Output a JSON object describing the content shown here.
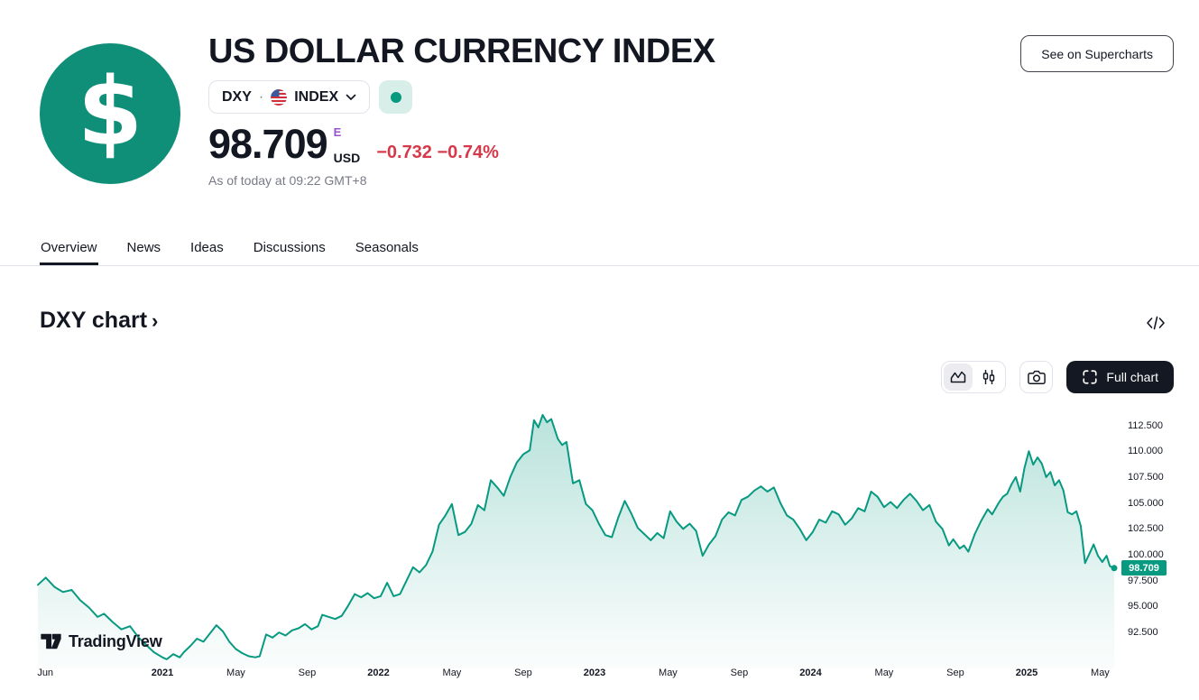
{
  "header": {
    "title": "US DOLLAR CURRENCY INDEX",
    "logo_symbol": "$",
    "symbol": "DXY",
    "separator": "·",
    "exchange": "INDEX",
    "market_status": "open",
    "price": "98.709",
    "price_flag": "E",
    "currency": "USD",
    "change_abs": "−0.732",
    "change_pct": "−0.74%",
    "as_of": "As of today at 09:22 GMT+8",
    "supercharts_button": "See on Supercharts"
  },
  "tabs": [
    {
      "label": "Overview",
      "active": true
    },
    {
      "label": "News",
      "active": false
    },
    {
      "label": "Ideas",
      "active": false
    },
    {
      "label": "Discussions",
      "active": false
    },
    {
      "label": "Seasonals",
      "active": false
    }
  ],
  "section": {
    "heading": "DXY chart",
    "chevron": "›"
  },
  "toolbar": {
    "full_chart_label": "Full chart",
    "icons": [
      "area-chart-icon",
      "candlestick-icon",
      "camera-icon",
      "fullscreen-icon"
    ]
  },
  "colors": {
    "accent": "#089981",
    "logo": "#0f8e78",
    "red": "#d6394a",
    "purple": "#9b52cc",
    "text": "#131722",
    "text_secondary": "#787b86",
    "border_light": "#e0e3eb"
  },
  "chart_data": {
    "type": "area",
    "title": "DXY chart",
    "series_name": "DXY",
    "watermark": "TradingView",
    "grid": false,
    "legend": false,
    "x_range": [
      2020.42,
      2025.41
    ],
    "ylim": [
      89.0,
      115.2
    ],
    "y_axis": {
      "ticks": [
        112.5,
        110.0,
        107.5,
        105.0,
        102.5,
        100.0,
        97.5,
        95.0,
        92.5
      ],
      "labels": [
        "112.500",
        "110.000",
        "107.500",
        "105.000",
        "102.500",
        "100.000",
        "97.500",
        "95.000",
        "92.500"
      ],
      "price_value": 98.709,
      "price_label": "98.709"
    },
    "x_ticks": [
      {
        "label": "Jun",
        "t": 2020.458,
        "bold": false
      },
      {
        "label": "2021",
        "t": 2021.0,
        "bold": true
      },
      {
        "label": "May",
        "t": 2021.34,
        "bold": false
      },
      {
        "label": "Sep",
        "t": 2021.67,
        "bold": false
      },
      {
        "label": "2022",
        "t": 2022.0,
        "bold": true
      },
      {
        "label": "May",
        "t": 2022.34,
        "bold": false
      },
      {
        "label": "Sep",
        "t": 2022.67,
        "bold": false
      },
      {
        "label": "2023",
        "t": 2023.0,
        "bold": true
      },
      {
        "label": "May",
        "t": 2023.34,
        "bold": false
      },
      {
        "label": "Sep",
        "t": 2023.67,
        "bold": false
      },
      {
        "label": "2024",
        "t": 2024.0,
        "bold": true
      },
      {
        "label": "May",
        "t": 2024.34,
        "bold": false
      },
      {
        "label": "Sep",
        "t": 2024.67,
        "bold": false
      },
      {
        "label": "2025",
        "t": 2025.0,
        "bold": true
      },
      {
        "label": "May",
        "t": 2025.34,
        "bold": false
      }
    ],
    "series": [
      {
        "name": "DXY",
        "points": [
          [
            2020.424,
            97.1
          ],
          [
            2020.46,
            97.8
          ],
          [
            2020.5,
            96.9
          ],
          [
            2020.54,
            96.4
          ],
          [
            2020.58,
            96.6
          ],
          [
            2020.62,
            95.6
          ],
          [
            2020.66,
            94.9
          ],
          [
            2020.7,
            94.0
          ],
          [
            2020.73,
            94.3
          ],
          [
            2020.77,
            93.5
          ],
          [
            2020.81,
            92.8
          ],
          [
            2020.85,
            93.1
          ],
          [
            2020.89,
            92.0
          ],
          [
            2020.93,
            91.2
          ],
          [
            2020.96,
            90.6
          ],
          [
            2021.0,
            90.1
          ],
          [
            2021.02,
            89.9
          ],
          [
            2021.05,
            90.4
          ],
          [
            2021.08,
            90.1
          ],
          [
            2021.1,
            90.6
          ],
          [
            2021.13,
            91.2
          ],
          [
            2021.16,
            91.9
          ],
          [
            2021.19,
            91.6
          ],
          [
            2021.22,
            92.4
          ],
          [
            2021.25,
            93.2
          ],
          [
            2021.28,
            92.6
          ],
          [
            2021.31,
            91.6
          ],
          [
            2021.34,
            90.9
          ],
          [
            2021.37,
            90.5
          ],
          [
            2021.4,
            90.2
          ],
          [
            2021.43,
            90.1
          ],
          [
            2021.45,
            90.2
          ],
          [
            2021.48,
            92.3
          ],
          [
            2021.51,
            92.0
          ],
          [
            2021.54,
            92.5
          ],
          [
            2021.57,
            92.2
          ],
          [
            2021.6,
            92.7
          ],
          [
            2021.63,
            92.9
          ],
          [
            2021.66,
            93.3
          ],
          [
            2021.69,
            92.8
          ],
          [
            2021.72,
            93.1
          ],
          [
            2021.74,
            94.2
          ],
          [
            2021.77,
            94.0
          ],
          [
            2021.8,
            93.8
          ],
          [
            2021.83,
            94.1
          ],
          [
            2021.86,
            95.1
          ],
          [
            2021.89,
            96.2
          ],
          [
            2021.92,
            95.9
          ],
          [
            2021.95,
            96.3
          ],
          [
            2021.98,
            95.8
          ],
          [
            2022.01,
            96.0
          ],
          [
            2022.04,
            97.3
          ],
          [
            2022.07,
            96.0
          ],
          [
            2022.1,
            96.2
          ],
          [
            2022.13,
            97.5
          ],
          [
            2022.16,
            98.8
          ],
          [
            2022.19,
            98.3
          ],
          [
            2022.22,
            99.0
          ],
          [
            2022.25,
            100.3
          ],
          [
            2022.28,
            102.9
          ],
          [
            2022.31,
            103.8
          ],
          [
            2022.34,
            104.9
          ],
          [
            2022.37,
            101.9
          ],
          [
            2022.4,
            102.2
          ],
          [
            2022.43,
            103.0
          ],
          [
            2022.46,
            104.8
          ],
          [
            2022.49,
            104.3
          ],
          [
            2022.52,
            107.2
          ],
          [
            2022.55,
            106.5
          ],
          [
            2022.58,
            105.7
          ],
          [
            2022.61,
            107.5
          ],
          [
            2022.64,
            108.9
          ],
          [
            2022.67,
            109.7
          ],
          [
            2022.7,
            110.1
          ],
          [
            2022.72,
            113.0
          ],
          [
            2022.74,
            112.3
          ],
          [
            2022.76,
            113.5
          ],
          [
            2022.78,
            112.8
          ],
          [
            2022.8,
            113.1
          ],
          [
            2022.83,
            111.2
          ],
          [
            2022.85,
            110.6
          ],
          [
            2022.87,
            110.9
          ],
          [
            2022.9,
            106.9
          ],
          [
            2022.93,
            107.2
          ],
          [
            2022.96,
            104.9
          ],
          [
            2022.99,
            104.3
          ],
          [
            2023.02,
            103.0
          ],
          [
            2023.05,
            101.9
          ],
          [
            2023.08,
            101.7
          ],
          [
            2023.11,
            103.6
          ],
          [
            2023.14,
            105.2
          ],
          [
            2023.17,
            104.0
          ],
          [
            2023.2,
            102.6
          ],
          [
            2023.23,
            102.0
          ],
          [
            2023.26,
            101.4
          ],
          [
            2023.29,
            102.1
          ],
          [
            2023.32,
            101.6
          ],
          [
            2023.35,
            104.2
          ],
          [
            2023.38,
            103.2
          ],
          [
            2023.41,
            102.5
          ],
          [
            2023.44,
            103.0
          ],
          [
            2023.47,
            102.3
          ],
          [
            2023.5,
            99.9
          ],
          [
            2023.53,
            101.0
          ],
          [
            2023.56,
            101.8
          ],
          [
            2023.59,
            103.4
          ],
          [
            2023.62,
            104.1
          ],
          [
            2023.65,
            103.8
          ],
          [
            2023.68,
            105.3
          ],
          [
            2023.71,
            105.6
          ],
          [
            2023.74,
            106.2
          ],
          [
            2023.77,
            106.6
          ],
          [
            2023.8,
            106.1
          ],
          [
            2023.83,
            106.5
          ],
          [
            2023.86,
            105.0
          ],
          [
            2023.89,
            103.8
          ],
          [
            2023.92,
            103.4
          ],
          [
            2023.95,
            102.5
          ],
          [
            2023.98,
            101.4
          ],
          [
            2024.01,
            102.2
          ],
          [
            2024.04,
            103.4
          ],
          [
            2024.07,
            103.1
          ],
          [
            2024.1,
            104.2
          ],
          [
            2024.13,
            103.9
          ],
          [
            2024.16,
            102.9
          ],
          [
            2024.19,
            103.5
          ],
          [
            2024.22,
            104.5
          ],
          [
            2024.25,
            104.2
          ],
          [
            2024.28,
            106.1
          ],
          [
            2024.31,
            105.6
          ],
          [
            2024.34,
            104.6
          ],
          [
            2024.37,
            105.1
          ],
          [
            2024.4,
            104.5
          ],
          [
            2024.43,
            105.3
          ],
          [
            2024.46,
            105.9
          ],
          [
            2024.49,
            105.2
          ],
          [
            2024.52,
            104.3
          ],
          [
            2024.55,
            104.8
          ],
          [
            2024.58,
            103.2
          ],
          [
            2024.61,
            102.5
          ],
          [
            2024.64,
            100.9
          ],
          [
            2024.66,
            101.5
          ],
          [
            2024.69,
            100.6
          ],
          [
            2024.71,
            100.9
          ],
          [
            2024.73,
            100.3
          ],
          [
            2024.76,
            102.0
          ],
          [
            2024.79,
            103.3
          ],
          [
            2024.82,
            104.4
          ],
          [
            2024.84,
            103.9
          ],
          [
            2024.87,
            105.0
          ],
          [
            2024.89,
            105.6
          ],
          [
            2024.91,
            105.9
          ],
          [
            2024.93,
            106.8
          ],
          [
            2024.95,
            107.5
          ],
          [
            2024.97,
            106.1
          ],
          [
            2024.99,
            108.4
          ],
          [
            2025.01,
            110.0
          ],
          [
            2025.03,
            108.7
          ],
          [
            2025.05,
            109.4
          ],
          [
            2025.07,
            108.8
          ],
          [
            2025.09,
            107.5
          ],
          [
            2025.11,
            108.0
          ],
          [
            2025.13,
            106.7
          ],
          [
            2025.15,
            107.2
          ],
          [
            2025.17,
            106.2
          ],
          [
            2025.19,
            104.1
          ],
          [
            2025.21,
            103.9
          ],
          [
            2025.23,
            104.2
          ],
          [
            2025.25,
            102.8
          ],
          [
            2025.27,
            99.2
          ],
          [
            2025.29,
            100.1
          ],
          [
            2025.31,
            101.0
          ],
          [
            2025.33,
            99.9
          ],
          [
            2025.35,
            99.3
          ],
          [
            2025.37,
            99.9
          ],
          [
            2025.385,
            98.9
          ],
          [
            2025.405,
            98.709
          ]
        ]
      }
    ]
  }
}
